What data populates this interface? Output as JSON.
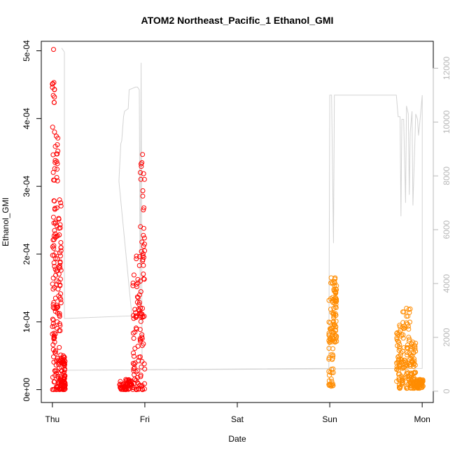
{
  "chart_data": {
    "type": "scatter",
    "title": "ATOM2 Northeast_Pacific_1 Ethanol_GMI",
    "xlabel": "Date",
    "ylabel": "Ethanol_GMI",
    "x_categories": [
      "Thu",
      "Fri",
      "Sat",
      "Sun",
      "Mon"
    ],
    "xlim": [
      -0.12,
      4.12
    ],
    "ylim": [
      -1.9e-05,
      0.000514
    ],
    "y_ticks": [
      0,
      0.0001,
      0.0002,
      0.0003,
      0.0004,
      0.0005
    ],
    "y_tick_labels": [
      "0e+00",
      "1e-04",
      "2e-04",
      "3e-04",
      "4e-04",
      "5e-04"
    ],
    "y2lim": [
      -420,
      13000
    ],
    "y2_ticks": [
      0,
      2000,
      4000,
      6000,
      8000,
      10000,
      12000
    ],
    "y2_tick_labels": [
      "0",
      "2000",
      "4000",
      "6000",
      "8000",
      "10000",
      "12000"
    ],
    "grid": false,
    "colors": {
      "series1": "#ff0000",
      "series2": "#ff8c00",
      "secondary_line": "#d3d3d3",
      "axis": "#000000",
      "axis2": "#b8b8b8"
    },
    "series": [
      {
        "color": "#ff0000",
        "marker": "open-circle",
        "segments": [
          {
            "x_start": 0.0,
            "x_end": 0.025,
            "y_low": 0.0,
            "y_high": 0.000502
          },
          {
            "x_start": 0.025,
            "x_end": 0.06,
            "y_low": 0.0,
            "y_high": 0.000374
          },
          {
            "x_start": 0.06,
            "x_end": 0.095,
            "y_low": 0.0,
            "y_high": 0.00028
          },
          {
            "x_start": 0.095,
            "x_end": 0.14,
            "y_low": 0.0,
            "y_high": 5e-05
          },
          {
            "x_start": 0.72,
            "x_end": 0.87,
            "y_low": 0.0,
            "y_high": 1.5e-05
          },
          {
            "x_start": 0.87,
            "x_end": 0.95,
            "y_low": 0.0,
            "y_high": 0.000197
          },
          {
            "x_start": 0.95,
            "x_end": 1.0,
            "y_low": 0.0,
            "y_high": 0.000347
          }
        ]
      },
      {
        "color": "#ff8c00",
        "marker": "open-circle",
        "segments": [
          {
            "x_start": 2.99,
            "x_end": 3.04,
            "y_low": 5e-06,
            "y_high": 0.000165
          },
          {
            "x_start": 3.04,
            "x_end": 3.075,
            "y_low": 7e-05,
            "y_high": 0.000165
          },
          {
            "x_start": 3.72,
            "x_end": 3.79,
            "y_low": 2e-06,
            "y_high": 9.5e-05
          },
          {
            "x_start": 3.79,
            "x_end": 3.87,
            "y_low": 2e-06,
            "y_high": 0.00012
          },
          {
            "x_start": 3.87,
            "x_end": 3.93,
            "y_low": 2e-06,
            "y_high": 7e-05
          },
          {
            "x_start": 3.93,
            "x_end": 4.01,
            "y_low": 2e-06,
            "y_high": 1.5e-05
          }
        ]
      }
    ],
    "secondary_line": {
      "axis": "right",
      "points": [
        [
          0.1,
          12750
        ],
        [
          0.13,
          12600
        ],
        [
          0.13,
          2700
        ],
        [
          0.86,
          2800
        ],
        [
          0.72,
          7800
        ],
        [
          0.74,
          9200
        ],
        [
          0.75,
          9300
        ],
        [
          0.77,
          10200
        ],
        [
          0.78,
          10400
        ],
        [
          0.82,
          10500
        ],
        [
          0.83,
          11200
        ],
        [
          0.9,
          11300
        ],
        [
          0.92,
          11300
        ],
        [
          0.94,
          11200
        ],
        [
          0.95,
          3200
        ],
        [
          0.96,
          12200
        ],
        [
          0.97,
          800
        ],
        [
          2.99,
          850
        ],
        [
          3.0,
          11000
        ],
        [
          3.02,
          11000
        ],
        [
          3.04,
          5500
        ],
        [
          3.05,
          11000
        ],
        [
          3.72,
          11000
        ],
        [
          3.74,
          10200
        ],
        [
          3.76,
          10200
        ],
        [
          3.77,
          6500
        ],
        [
          3.78,
          10100
        ],
        [
          3.8,
          10100
        ],
        [
          3.82,
          7000
        ],
        [
          3.83,
          10600
        ],
        [
          3.85,
          10300
        ],
        [
          3.86,
          7300
        ],
        [
          3.87,
          9600
        ],
        [
          3.89,
          10400
        ],
        [
          3.9,
          6900
        ],
        [
          3.93,
          10300
        ],
        [
          3.95,
          10100
        ],
        [
          3.96,
          9500
        ],
        [
          3.98,
          10200
        ],
        [
          4.0,
          11000
        ],
        [
          4.0,
          850
        ],
        [
          0.13,
          780
        ]
      ]
    }
  }
}
